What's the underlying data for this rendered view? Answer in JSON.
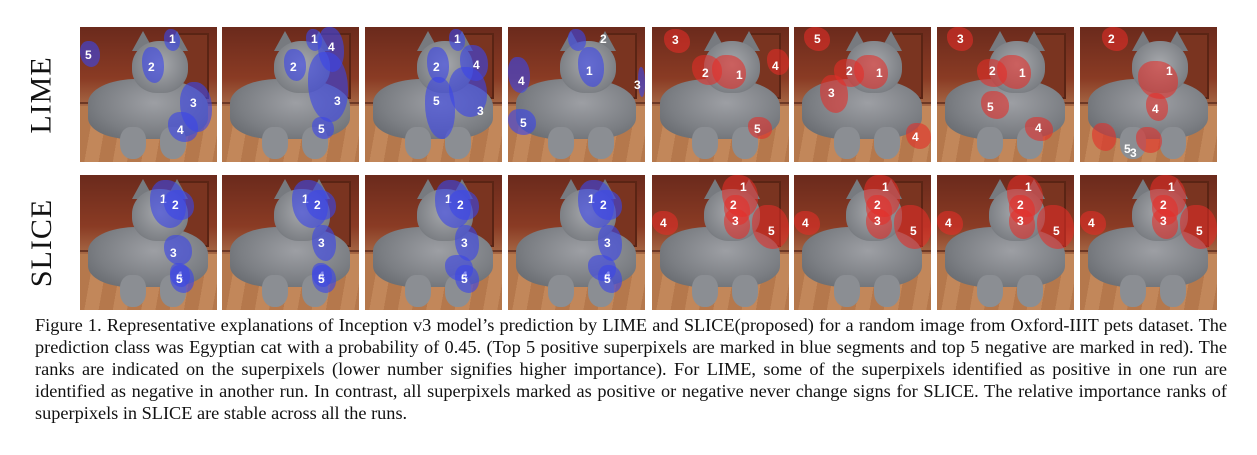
{
  "figure": {
    "row_labels": [
      "LIME",
      "SLICE"
    ],
    "rows": [
      {
        "name": "LIME",
        "panels": [
          {
            "segments": [
              {
                "rank": "1",
                "type": "positive"
              },
              {
                "rank": "2",
                "type": "positive"
              },
              {
                "rank": "3",
                "type": "positive"
              },
              {
                "rank": "4",
                "type": "positive"
              },
              {
                "rank": "5",
                "type": "positive"
              }
            ]
          },
          {
            "segments": [
              {
                "rank": "1",
                "type": "positive"
              },
              {
                "rank": "2",
                "type": "positive"
              },
              {
                "rank": "3",
                "type": "positive"
              },
              {
                "rank": "4",
                "type": "positive"
              },
              {
                "rank": "5",
                "type": "positive"
              }
            ]
          },
          {
            "segments": [
              {
                "rank": "1",
                "type": "positive"
              },
              {
                "rank": "2",
                "type": "positive"
              },
              {
                "rank": "3",
                "type": "positive"
              },
              {
                "rank": "4",
                "type": "positive"
              },
              {
                "rank": "5",
                "type": "positive"
              }
            ]
          },
          {
            "segments": [
              {
                "rank": "1",
                "type": "positive"
              },
              {
                "rank": "2",
                "type": "positive"
              },
              {
                "rank": "3",
                "type": "positive"
              },
              {
                "rank": "4",
                "type": "positive"
              },
              {
                "rank": "5",
                "type": "positive"
              }
            ]
          },
          {
            "segments": [
              {
                "rank": "1",
                "type": "negative"
              },
              {
                "rank": "2",
                "type": "negative"
              },
              {
                "rank": "3",
                "type": "negative"
              },
              {
                "rank": "4",
                "type": "negative"
              },
              {
                "rank": "5",
                "type": "negative"
              }
            ]
          },
          {
            "segments": [
              {
                "rank": "1",
                "type": "negative"
              },
              {
                "rank": "2",
                "type": "negative"
              },
              {
                "rank": "3",
                "type": "negative"
              },
              {
                "rank": "4",
                "type": "negative"
              },
              {
                "rank": "5",
                "type": "negative"
              }
            ]
          },
          {
            "segments": [
              {
                "rank": "1",
                "type": "negative"
              },
              {
                "rank": "2",
                "type": "negative"
              },
              {
                "rank": "3",
                "type": "negative"
              },
              {
                "rank": "4",
                "type": "negative"
              },
              {
                "rank": "5",
                "type": "negative"
              }
            ]
          },
          {
            "segments": [
              {
                "rank": "1",
                "type": "negative"
              },
              {
                "rank": "2",
                "type": "negative"
              },
              {
                "rank": "3",
                "type": "negative"
              },
              {
                "rank": "4",
                "type": "negative"
              },
              {
                "rank": "5",
                "type": "negative"
              }
            ]
          }
        ]
      },
      {
        "name": "SLICE",
        "panels": [
          {
            "segments": [
              {
                "rank": "1",
                "type": "positive"
              },
              {
                "rank": "2",
                "type": "positive"
              },
              {
                "rank": "3",
                "type": "positive"
              },
              {
                "rank": "4",
                "type": "positive"
              },
              {
                "rank": "5",
                "type": "positive"
              }
            ]
          },
          {
            "segments": [
              {
                "rank": "1",
                "type": "positive"
              },
              {
                "rank": "2",
                "type": "positive"
              },
              {
                "rank": "3",
                "type": "positive"
              },
              {
                "rank": "4",
                "type": "positive"
              },
              {
                "rank": "5",
                "type": "positive"
              }
            ]
          },
          {
            "segments": [
              {
                "rank": "1",
                "type": "positive"
              },
              {
                "rank": "2",
                "type": "positive"
              },
              {
                "rank": "3",
                "type": "positive"
              },
              {
                "rank": "4",
                "type": "positive"
              },
              {
                "rank": "5",
                "type": "positive"
              }
            ]
          },
          {
            "segments": [
              {
                "rank": "1",
                "type": "positive"
              },
              {
                "rank": "2",
                "type": "positive"
              },
              {
                "rank": "3",
                "type": "positive"
              },
              {
                "rank": "4",
                "type": "positive"
              },
              {
                "rank": "5",
                "type": "positive"
              }
            ]
          },
          {
            "segments": [
              {
                "rank": "1",
                "type": "negative"
              },
              {
                "rank": "2",
                "type": "negative"
              },
              {
                "rank": "3",
                "type": "negative"
              },
              {
                "rank": "4",
                "type": "negative"
              },
              {
                "rank": "5",
                "type": "negative"
              }
            ]
          },
          {
            "segments": [
              {
                "rank": "1",
                "type": "negative"
              },
              {
                "rank": "2",
                "type": "negative"
              },
              {
                "rank": "3",
                "type": "negative"
              },
              {
                "rank": "4",
                "type": "negative"
              },
              {
                "rank": "5",
                "type": "negative"
              }
            ]
          },
          {
            "segments": [
              {
                "rank": "1",
                "type": "negative"
              },
              {
                "rank": "2",
                "type": "negative"
              },
              {
                "rank": "3",
                "type": "negative"
              },
              {
                "rank": "4",
                "type": "negative"
              },
              {
                "rank": "5",
                "type": "negative"
              }
            ]
          },
          {
            "segments": [
              {
                "rank": "1",
                "type": "negative"
              },
              {
                "rank": "2",
                "type": "negative"
              },
              {
                "rank": "3",
                "type": "negative"
              },
              {
                "rank": "4",
                "type": "negative"
              },
              {
                "rank": "5",
                "type": "negative"
              }
            ]
          }
        ]
      }
    ],
    "colors": {
      "positive_segment": "#3c46e6",
      "negative_segment": "#e62d28"
    }
  },
  "caption": "Figure 1. Representative explanations of Inception v3 model’s prediction by LIME and SLICE(proposed) for a random image from Oxford-IIIT pets dataset. The prediction class was Egyptian cat with a probability of 0.45. (Top 5 positive superpixels are marked in blue segments and top 5 negative are marked in red). The ranks are indicated on the superpixels (lower number signifies higher importance). For LIME, some of the superpixels identified as positive in one run are identified as negative in another run. In contrast, all superpixels marked as positive or negative never change signs for SLICE. The relative importance ranks of superpixels in SLICE are stable across all the runs."
}
